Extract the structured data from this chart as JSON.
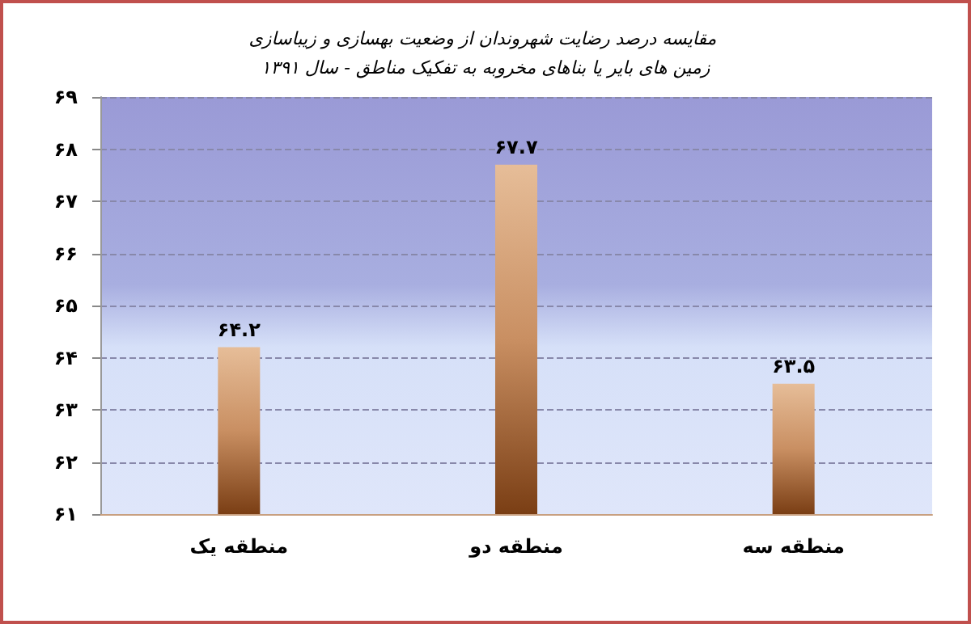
{
  "chart_data": {
    "type": "bar",
    "title": "مقایسه درصد رضایت شهروندان از وضعیت بهسازی و زیباسازی زمین های بایر یا بناهای مخروبه به تفکیک مناطق - سال ۱۳۹۱",
    "categories": [
      "منطقه یک",
      "منطقه دو",
      "منطقه سه"
    ],
    "values": [
      64.2,
      67.7,
      63.5
    ],
    "value_labels": [
      "۶۴.۲",
      "۶۷.۷",
      "۶۳.۵"
    ],
    "color": "#c98f62",
    "ylim": [
      61,
      69
    ],
    "yticks": [
      {
        "value": 61,
        "label": "۶۱"
      },
      {
        "value": 62,
        "label": "۶۲"
      },
      {
        "value": 63,
        "label": "۶۳"
      },
      {
        "value": 64,
        "label": "۶۴"
      },
      {
        "value": 65,
        "label": "۶۵"
      },
      {
        "value": 66,
        "label": "۶۶"
      },
      {
        "value": 67,
        "label": "۶۷"
      },
      {
        "value": 68,
        "label": "۶۸"
      },
      {
        "value": 69,
        "label": "۶۹"
      }
    ],
    "grid": "y"
  }
}
